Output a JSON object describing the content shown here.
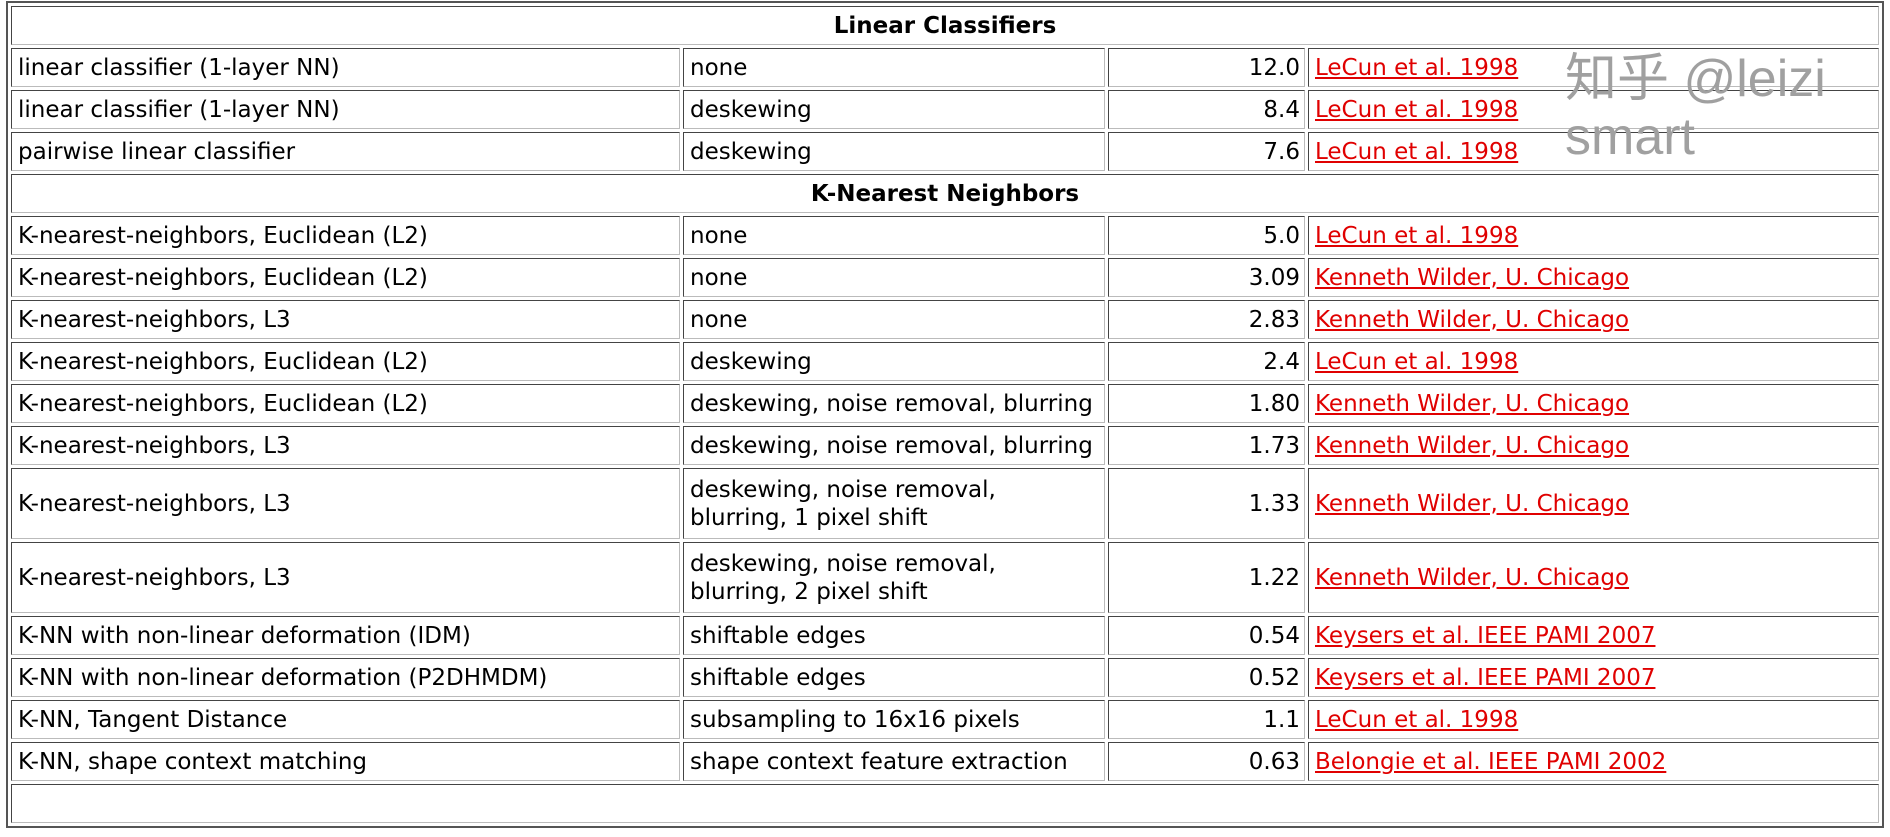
{
  "sections": [
    {
      "title": "Linear Classifiers",
      "rows": [
        {
          "classifier": "linear classifier (1-layer NN)",
          "preprocessing": "none",
          "error": "12.0",
          "reference": "LeCun et al. 1998"
        },
        {
          "classifier": "linear classifier (1-layer NN)",
          "preprocessing": "deskewing",
          "error": "8.4",
          "reference": "LeCun et al. 1998"
        },
        {
          "classifier": "pairwise linear classifier",
          "preprocessing": "deskewing",
          "error": "7.6",
          "reference": "LeCun et al. 1998"
        }
      ]
    },
    {
      "title": "K-Nearest Neighbors",
      "rows": [
        {
          "classifier": "K-nearest-neighbors, Euclidean (L2)",
          "preprocessing": "none",
          "error": "5.0",
          "reference": "LeCun et al. 1998"
        },
        {
          "classifier": "K-nearest-neighbors, Euclidean (L2)",
          "preprocessing": "none",
          "error": "3.09",
          "reference": "Kenneth Wilder, U. Chicago"
        },
        {
          "classifier": "K-nearest-neighbors, L3",
          "preprocessing": "none",
          "error": "2.83",
          "reference": "Kenneth Wilder, U. Chicago"
        },
        {
          "classifier": "K-nearest-neighbors, Euclidean (L2)",
          "preprocessing": "deskewing",
          "error": "2.4",
          "reference": "LeCun et al. 1998"
        },
        {
          "classifier": "K-nearest-neighbors, Euclidean (L2)",
          "preprocessing": "deskewing, noise removal, blurring",
          "error": "1.80",
          "reference": "Kenneth Wilder, U. Chicago"
        },
        {
          "classifier": "K-nearest-neighbors, L3",
          "preprocessing": "deskewing, noise removal, blurring",
          "error": "1.73",
          "reference": "Kenneth Wilder, U. Chicago"
        },
        {
          "classifier": "K-nearest-neighbors, L3",
          "preprocessing": "deskewing, noise removal, blurring, 1 pixel shift",
          "error": "1.33",
          "reference": "Kenneth Wilder, U. Chicago"
        },
        {
          "classifier": "K-nearest-neighbors, L3",
          "preprocessing": "deskewing, noise removal, blurring, 2 pixel shift",
          "error": "1.22",
          "reference": "Kenneth Wilder, U. Chicago"
        },
        {
          "classifier": "K-NN with non-linear deformation (IDM)",
          "preprocessing": "shiftable edges",
          "error": "0.54",
          "reference": "Keysers et al. IEEE PAMI 2007"
        },
        {
          "classifier": "K-NN with non-linear deformation (P2DHMDM)",
          "preprocessing": "shiftable edges",
          "error": "0.52",
          "reference": "Keysers et al. IEEE PAMI 2007"
        },
        {
          "classifier": "K-NN, Tangent Distance",
          "preprocessing": "subsampling to 16x16 pixels",
          "error": "1.1",
          "reference": "LeCun et al. 1998"
        },
        {
          "classifier": "K-NN, shape context matching",
          "preprocessing": "shape context feature extraction",
          "error": "0.63",
          "reference": "Belongie et al. IEEE PAMI 2002"
        }
      ]
    }
  ],
  "watermark": "知乎 @leizi smart",
  "colors": {
    "link": "#e00000"
  }
}
